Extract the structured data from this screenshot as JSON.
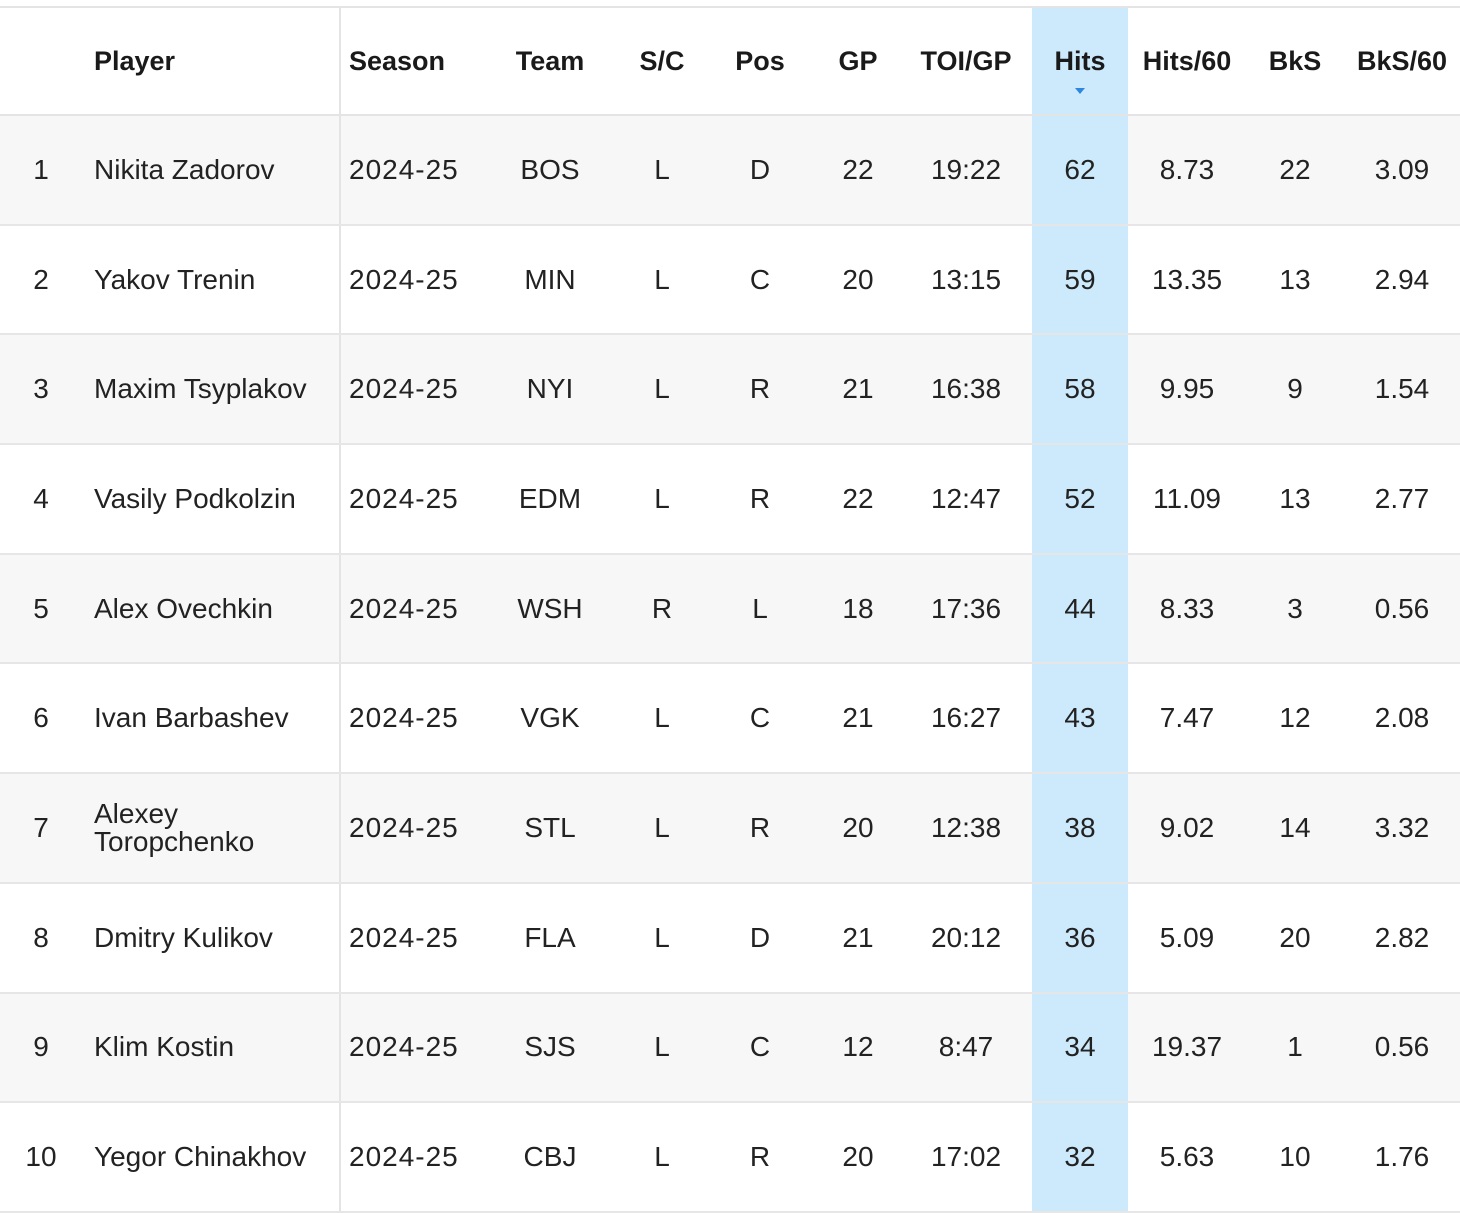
{
  "table": {
    "headers": {
      "rank": "",
      "player": "Player",
      "season": "Season",
      "team": "Team",
      "sc": "S/C",
      "pos": "Pos",
      "gp": "GP",
      "toi": "TOI/GP",
      "hits": "Hits",
      "hits60": "Hits/60",
      "bks": "BkS",
      "bks60": "BkS/60"
    },
    "sorted_column": "Hits",
    "sort_direction": "descending",
    "highlight_color": "#cdeafc",
    "rows": [
      {
        "rank": "1",
        "player": "Nikita Zadorov",
        "season": "2024-25",
        "team": "BOS",
        "sc": "L",
        "pos": "D",
        "gp": "22",
        "toi": "19:22",
        "hits": "62",
        "hits60": "8.73",
        "bks": "22",
        "bks60": "3.09"
      },
      {
        "rank": "2",
        "player": "Yakov Trenin",
        "season": "2024-25",
        "team": "MIN",
        "sc": "L",
        "pos": "C",
        "gp": "20",
        "toi": "13:15",
        "hits": "59",
        "hits60": "13.35",
        "bks": "13",
        "bks60": "2.94"
      },
      {
        "rank": "3",
        "player": "Maxim Tsyplakov",
        "season": "2024-25",
        "team": "NYI",
        "sc": "L",
        "pos": "R",
        "gp": "21",
        "toi": "16:38",
        "hits": "58",
        "hits60": "9.95",
        "bks": "9",
        "bks60": "1.54"
      },
      {
        "rank": "4",
        "player": "Vasily Podkolzin",
        "season": "2024-25",
        "team": "EDM",
        "sc": "L",
        "pos": "R",
        "gp": "22",
        "toi": "12:47",
        "hits": "52",
        "hits60": "11.09",
        "bks": "13",
        "bks60": "2.77"
      },
      {
        "rank": "5",
        "player": "Alex Ovechkin",
        "season": "2024-25",
        "team": "WSH",
        "sc": "R",
        "pos": "L",
        "gp": "18",
        "toi": "17:36",
        "hits": "44",
        "hits60": "8.33",
        "bks": "3",
        "bks60": "0.56"
      },
      {
        "rank": "6",
        "player": "Ivan Barbashev",
        "season": "2024-25",
        "team": "VGK",
        "sc": "L",
        "pos": "C",
        "gp": "21",
        "toi": "16:27",
        "hits": "43",
        "hits60": "7.47",
        "bks": "12",
        "bks60": "2.08"
      },
      {
        "rank": "7",
        "player": "Alexey Toropchenko",
        "season": "2024-25",
        "team": "STL",
        "sc": "L",
        "pos": "R",
        "gp": "20",
        "toi": "12:38",
        "hits": "38",
        "hits60": "9.02",
        "bks": "14",
        "bks60": "3.32"
      },
      {
        "rank": "8",
        "player": "Dmitry Kulikov",
        "season": "2024-25",
        "team": "FLA",
        "sc": "L",
        "pos": "D",
        "gp": "21",
        "toi": "20:12",
        "hits": "36",
        "hits60": "5.09",
        "bks": "20",
        "bks60": "2.82"
      },
      {
        "rank": "9",
        "player": "Klim Kostin",
        "season": "2024-25",
        "team": "SJS",
        "sc": "L",
        "pos": "C",
        "gp": "12",
        "toi": "8:47",
        "hits": "34",
        "hits60": "19.37",
        "bks": "1",
        "bks60": "0.56"
      },
      {
        "rank": "10",
        "player": "Yegor Chinakhov",
        "season": "2024-25",
        "team": "CBJ",
        "sc": "L",
        "pos": "R",
        "gp": "20",
        "toi": "17:02",
        "hits": "32",
        "hits60": "5.63",
        "bks": "10",
        "bks60": "1.76"
      }
    ]
  }
}
